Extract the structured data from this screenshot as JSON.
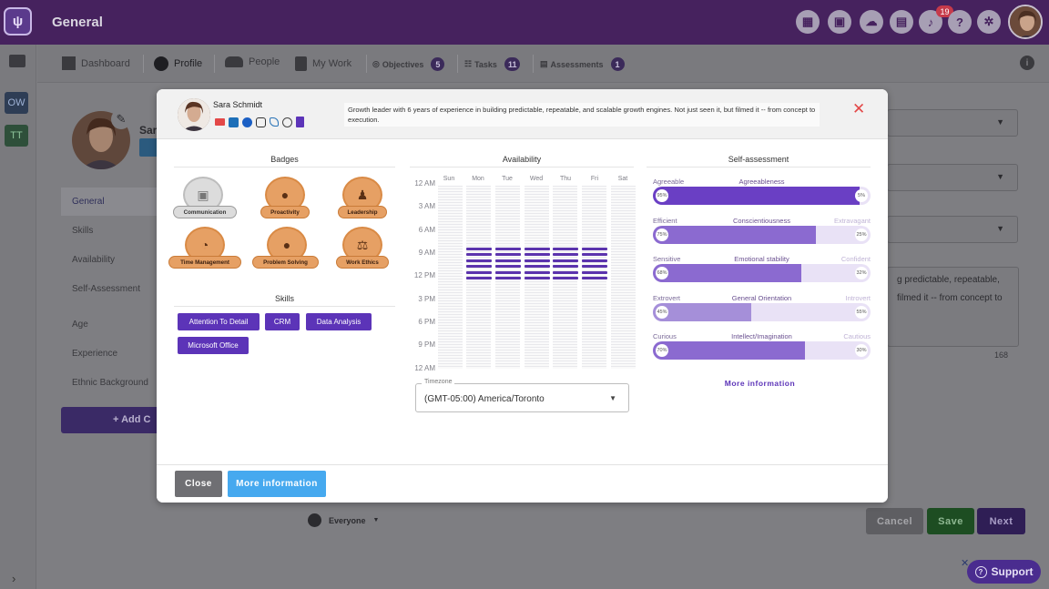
{
  "app": {
    "title": "General",
    "logo_text": "ψ"
  },
  "topbar": {
    "icons": [
      "dashboard-icon",
      "calendar-icon",
      "cloud-icon",
      "chat-icon",
      "bell-icon",
      "help-icon",
      "gear-icon"
    ],
    "notifications_count": "19",
    "help_glyph": "?"
  },
  "leftrail": {
    "items": [
      {
        "label": "OW"
      },
      {
        "label": "TT"
      }
    ]
  },
  "nav": {
    "dashboard": "Dashboard",
    "profile": "Profile",
    "people": "People",
    "mywork": "My Work",
    "objectives": "Objectives",
    "objectives_count": "5",
    "tasks": "Tasks",
    "tasks_count": "11",
    "assessments": "Assessments",
    "assessments_count": "1"
  },
  "background": {
    "sidebar": [
      "General",
      "Skills",
      "Availability",
      "Self-Assessment",
      "Age",
      "Experience",
      "Ethnic Background"
    ],
    "add_button": "+ Add C",
    "name_partial": "Sar",
    "textarea_line1": "g predictable, repeatable,",
    "textarea_line2": "filmed it -- from concept to",
    "char_count": "168",
    "visibility": "Everyone",
    "cancel": "Cancel",
    "save": "Save",
    "next": "Next",
    "support": "Support"
  },
  "modal": {
    "name": "Sara Schmidt",
    "bio": "Growth leader with 6 years of experience in building predictable, repeatable, and scalable growth engines. Not just seen it, but filmed it -- from concept to execution.",
    "social_icons": [
      "email-icon",
      "linkedin-icon",
      "facebook-icon",
      "instagram-icon",
      "phone-icon",
      "globe-icon",
      "document-icon"
    ],
    "badges_title": "Badges",
    "badges": [
      {
        "label": "Communication",
        "icon": "chat-bubble-icon",
        "active": false
      },
      {
        "label": "Proactivity",
        "icon": "head-icon",
        "active": true
      },
      {
        "label": "Leadership",
        "icon": "people-icon",
        "active": true
      },
      {
        "label": "Time Management",
        "icon": "stopwatch-icon",
        "active": true
      },
      {
        "label": "Problem Solving",
        "icon": "lightbulb-icon",
        "active": true
      },
      {
        "label": "Work Ethics",
        "icon": "scale-icon",
        "active": true
      }
    ],
    "skills_title": "Skills",
    "skills": [
      "Attention To Detail",
      "CRM",
      "Data Analysis",
      "Microsoft Office"
    ],
    "availability_title": "Availability",
    "days": [
      "Sun",
      "Mon",
      "Tue",
      "Wed",
      "Thu",
      "Fri",
      "Sat"
    ],
    "times": [
      "12 AM",
      "3 AM",
      "6 AM",
      "9 AM",
      "12 PM",
      "3 PM",
      "6 PM",
      "9 PM",
      "12 AM"
    ],
    "available_days": [
      "Mon",
      "Tue",
      "Wed",
      "Thu",
      "Fri"
    ],
    "available_hours": "9 AM - 2 PM",
    "timezone_label": "Timezone",
    "timezone_value": "(GMT-05:00) America/Toronto",
    "self_assessment_title": "Self-assessment",
    "traits": [
      {
        "left": "Agreeable",
        "center": "Agreeableness",
        "right": "",
        "left_pct": "95%",
        "right_pct": "5%",
        "value": 0.95
      },
      {
        "left": "Efficient",
        "center": "Conscientiousness",
        "right": "Extravagant",
        "left_pct": "75%",
        "right_pct": "25%",
        "value": 0.75
      },
      {
        "left": "Sensitive",
        "center": "Emotional stability",
        "right": "Confident",
        "left_pct": "68%",
        "right_pct": "32%",
        "value": 0.68
      },
      {
        "left": "Extrovert",
        "center": "General Orientation",
        "right": "Introvert",
        "left_pct": "45%",
        "right_pct": "55%",
        "value": 0.45
      },
      {
        "left": "Curious",
        "center": "Intellect/Imagination",
        "right": "Cautious",
        "left_pct": "70%",
        "right_pct": "30%",
        "value": 0.7
      }
    ],
    "more_information_link": "More information",
    "close_button": "Close",
    "more_information_button": "More information"
  },
  "colors": {
    "purple": "#5c34b8",
    "topbar": "#46225e",
    "badge_orange": "#e6a064",
    "accent_blue": "#46a9ef",
    "red_close": "#e34848"
  }
}
